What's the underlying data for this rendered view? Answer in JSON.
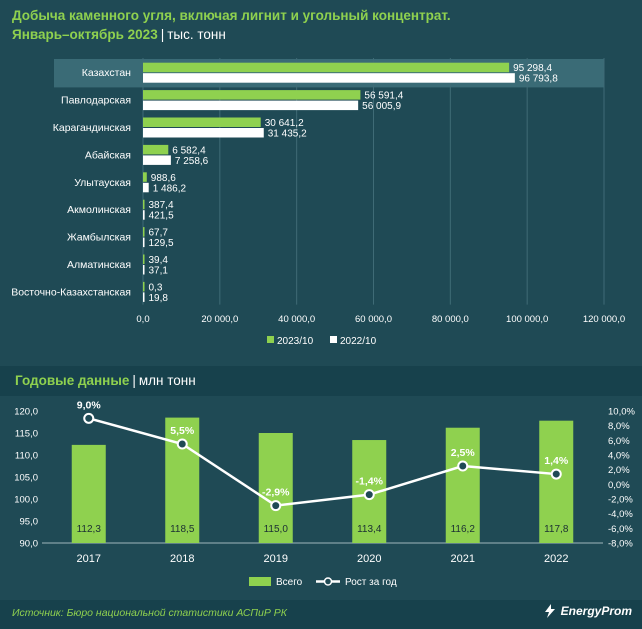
{
  "header": {
    "title_line1": "Добыча каменного угля, включая лигнит и угольный концентрат.",
    "title_line2": "Январь–октябрь 2023",
    "unit": "тыс. тонн"
  },
  "colors": {
    "bar_2023": "#8fd14f",
    "bar_2022": "#ffffff",
    "highlight_row": "#3a6b76",
    "growth_line": "#ffffff",
    "grid": "#3f6b76"
  },
  "chart_data": [
    {
      "type": "bar",
      "orientation": "horizontal",
      "title": "Добыча каменного угля, включая лигнит и угольный концентрат. Январь–октябрь 2023",
      "unit": "тыс. тонн",
      "categories": [
        "Казахстан",
        "Павлодарская",
        "Карагандинская",
        "Абайская",
        "Улытауская",
        "Акмолинская",
        "Жамбылская",
        "Алматинская",
        "Восточно-Казахстанская"
      ],
      "series": [
        {
          "name": "2023/10",
          "values": [
            95298.4,
            56591.4,
            30641.2,
            6582.4,
            988.6,
            387.4,
            67.7,
            39.4,
            0.3
          ],
          "labels": [
            "95 298,4",
            "56 591,4",
            "30 641,2",
            "6 582,4",
            "988,6",
            "387,4",
            "67,7",
            "39,4",
            "0,3"
          ]
        },
        {
          "name": "2022/10",
          "values": [
            96793.8,
            56005.9,
            31435.2,
            7258.6,
            1486.2,
            421.5,
            129.5,
            37.1,
            19.8
          ],
          "labels": [
            "96 793,8",
            "56 005,9",
            "31 435,2",
            "7 258,6",
            "1 486,2",
            "421,5",
            "129,5",
            "37,1",
            "19,8"
          ]
        }
      ],
      "xlim": [
        0,
        120000
      ],
      "ticks": [
        0,
        20000,
        40000,
        60000,
        80000,
        100000,
        120000
      ],
      "tick_labels": [
        "0,0",
        "20 000,0",
        "40 000,0",
        "60 000,0",
        "80 000,0",
        "100 000,0",
        "120 000,0"
      ],
      "highlight_category": "Казахстан",
      "legend": "bottom"
    },
    {
      "type": "bar+line",
      "title": "Годовые данные",
      "unit": "млн тонн",
      "categories": [
        "2017",
        "2018",
        "2019",
        "2020",
        "2021",
        "2022"
      ],
      "bars": {
        "name": "Всего",
        "values": [
          112.3,
          118.5,
          115.0,
          113.4,
          116.2,
          117.8
        ],
        "labels": [
          "112,3",
          "118,5",
          "115,0",
          "113,4",
          "116,2",
          "117,8"
        ]
      },
      "line": {
        "name": "Рост за год",
        "values": [
          9.0,
          5.5,
          -2.9,
          -1.4,
          2.5,
          1.4
        ],
        "labels": [
          "9,0%",
          "5,5%",
          "-2,9%",
          "-1,4%",
          "2,5%",
          "1,4%"
        ]
      },
      "ylim_left": [
        90,
        120
      ],
      "left_ticks": [
        "90,0",
        "95,0",
        "100,0",
        "105,0",
        "110,0",
        "115,0",
        "120,0"
      ],
      "ylim_right": [
        -8,
        10
      ],
      "right_ticks": [
        "10,0%",
        "8,0%",
        "6,0%",
        "4,0%",
        "2,0%",
        "0,0%",
        "-2,0%",
        "-4,0%",
        "-6,0%",
        "-8,0%"
      ],
      "legend": "bottom"
    }
  ],
  "annual": {
    "title": "Годовые данные",
    "unit": "млн тонн"
  },
  "footer": {
    "source": "Источник: Бюро национальной статистики АСПиР РК",
    "brand": "EnergyProm"
  }
}
